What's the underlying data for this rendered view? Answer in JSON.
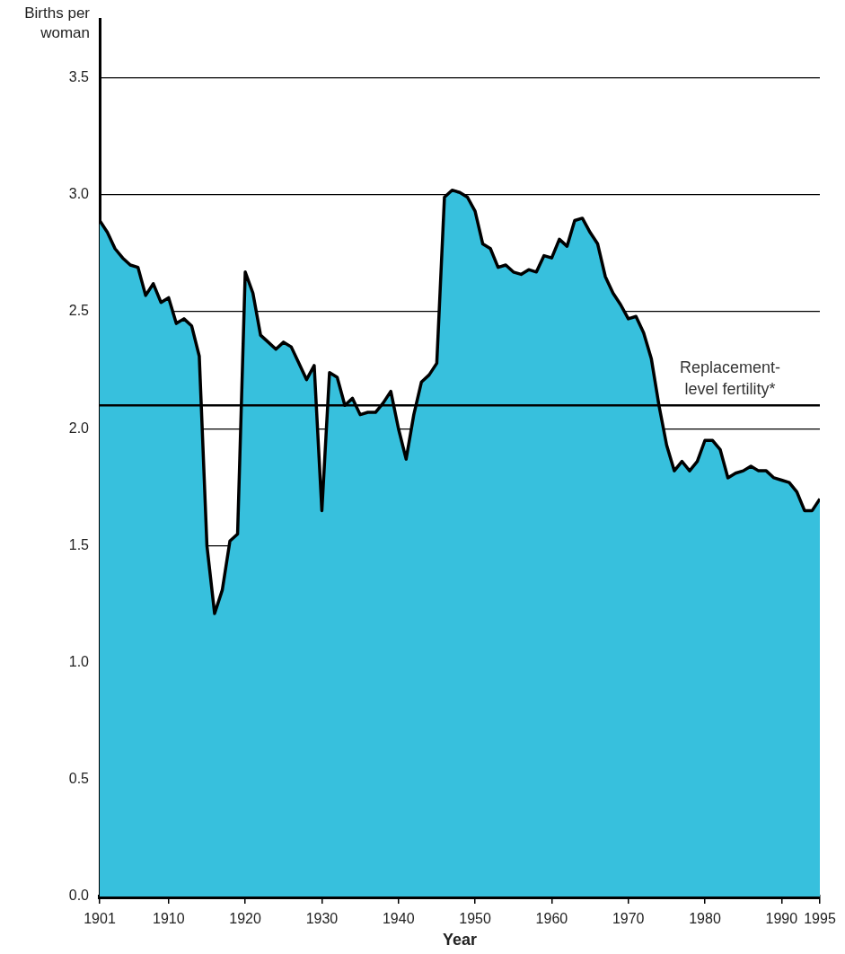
{
  "chart_data": {
    "type": "area",
    "xlabel": "Year",
    "ylabel": "Births per woman",
    "x": [
      1901,
      1902,
      1903,
      1904,
      1905,
      1906,
      1907,
      1908,
      1909,
      1910,
      1911,
      1912,
      1913,
      1914,
      1915,
      1916,
      1917,
      1918,
      1919,
      1920,
      1921,
      1922,
      1923,
      1924,
      1925,
      1926,
      1927,
      1928,
      1929,
      1930,
      1931,
      1932,
      1933,
      1934,
      1935,
      1936,
      1937,
      1938,
      1939,
      1940,
      1941,
      1942,
      1943,
      1944,
      1945,
      1946,
      1947,
      1948,
      1949,
      1950,
      1951,
      1952,
      1953,
      1954,
      1955,
      1956,
      1957,
      1958,
      1959,
      1960,
      1961,
      1962,
      1963,
      1964,
      1965,
      1966,
      1967,
      1968,
      1969,
      1970,
      1971,
      1972,
      1973,
      1974,
      1975,
      1976,
      1977,
      1978,
      1979,
      1980,
      1981,
      1982,
      1983,
      1984,
      1985,
      1986,
      1987,
      1988,
      1989,
      1990,
      1991,
      1992,
      1993,
      1994,
      1995
    ],
    "series": [
      {
        "color": "#37c0dd",
        "values": [
          2.89,
          2.84,
          2.77,
          2.73,
          2.7,
          2.69,
          2.57,
          2.62,
          2.54,
          2.56,
          2.45,
          2.47,
          2.44,
          2.31,
          1.5,
          1.21,
          1.31,
          1.52,
          1.55,
          2.67,
          2.58,
          2.4,
          2.37,
          2.34,
          2.37,
          2.35,
          2.28,
          2.21,
          2.27,
          1.65,
          2.24,
          2.22,
          2.1,
          2.13,
          2.06,
          2.07,
          2.07,
          2.11,
          2.16,
          2.0,
          1.87,
          2.06,
          2.2,
          2.23,
          2.28,
          2.99,
          3.02,
          3.01,
          2.99,
          2.93,
          2.79,
          2.77,
          2.69,
          2.7,
          2.67,
          2.66,
          2.68,
          2.67,
          2.74,
          2.73,
          2.81,
          2.78,
          2.89,
          2.9,
          2.84,
          2.79,
          2.65,
          2.58,
          2.53,
          2.47,
          2.48,
          2.41,
          2.3,
          2.1,
          1.93,
          1.82,
          1.86,
          1.82,
          1.86,
          1.95,
          1.95,
          1.91,
          1.79,
          1.81,
          1.82,
          1.84,
          1.82,
          1.82,
          1.79,
          1.78,
          1.77,
          1.73,
          1.65,
          1.65,
          1.7
        ]
      }
    ],
    "xlim": [
      1901,
      1995
    ],
    "xticks": [
      1901,
      1910,
      1920,
      1930,
      1940,
      1950,
      1960,
      1970,
      1980,
      1990,
      1995
    ],
    "ylim": [
      0,
      3.75
    ],
    "yticks": [
      {
        "value": 0,
        "label": "0.0"
      },
      0.5,
      {
        "value": 1,
        "label": "1.0"
      },
      1.5,
      {
        "value": 2,
        "label": "2.0"
      },
      2.5,
      {
        "value": 3,
        "label": "3.0"
      },
      3.5
    ],
    "grid": "y",
    "legend": false,
    "ref_lines": [
      {
        "axis": "y",
        "value": 2.1,
        "label": "Replacement-level fertility*",
        "color": "#000000"
      }
    ]
  }
}
